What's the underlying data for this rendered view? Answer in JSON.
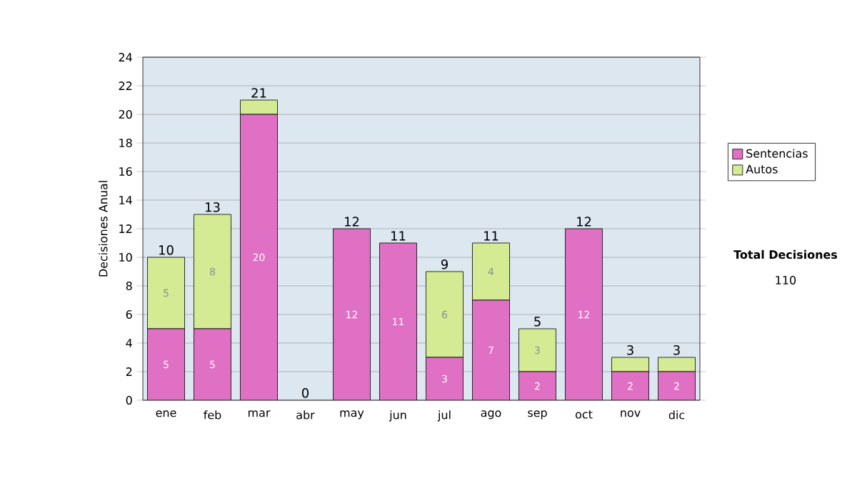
{
  "chart_data": {
    "type": "bar",
    "stacked": true,
    "ylabel": "Decisiones Anual",
    "categories": [
      "ene",
      "feb",
      "mar",
      "abr",
      "may",
      "jun",
      "jul",
      "ago",
      "sep",
      "oct",
      "nov",
      "dic"
    ],
    "series": [
      {
        "name": "Sentencias",
        "color": "#e070c4",
        "values": [
          5,
          5,
          20,
          0,
          12,
          11,
          3,
          7,
          2,
          12,
          2,
          2
        ],
        "value_labels": [
          "5",
          "5",
          "20",
          null,
          "12",
          "11",
          "3",
          "7",
          "2",
          "12",
          "2",
          "2"
        ]
      },
      {
        "name": "Autos",
        "color": "#d4eb94",
        "values": [
          5,
          8,
          1,
          0,
          0,
          0,
          6,
          4,
          3,
          0,
          1,
          1
        ],
        "value_labels": [
          "5",
          "8",
          null,
          null,
          null,
          null,
          "6",
          "4",
          "3",
          null,
          null,
          null
        ]
      }
    ],
    "totals": [
      "10",
      "13",
      "21",
      "0",
      "12",
      "11",
      "9",
      "11",
      "5",
      "12",
      "3",
      "3"
    ],
    "ylim": [
      0,
      24
    ],
    "yticks": [
      0,
      2,
      4,
      6,
      8,
      10,
      12,
      14,
      16,
      18,
      20,
      22,
      24
    ],
    "grid": "y",
    "legend": "right",
    "annotations": [
      "Total Decisiones",
      "110"
    ]
  }
}
